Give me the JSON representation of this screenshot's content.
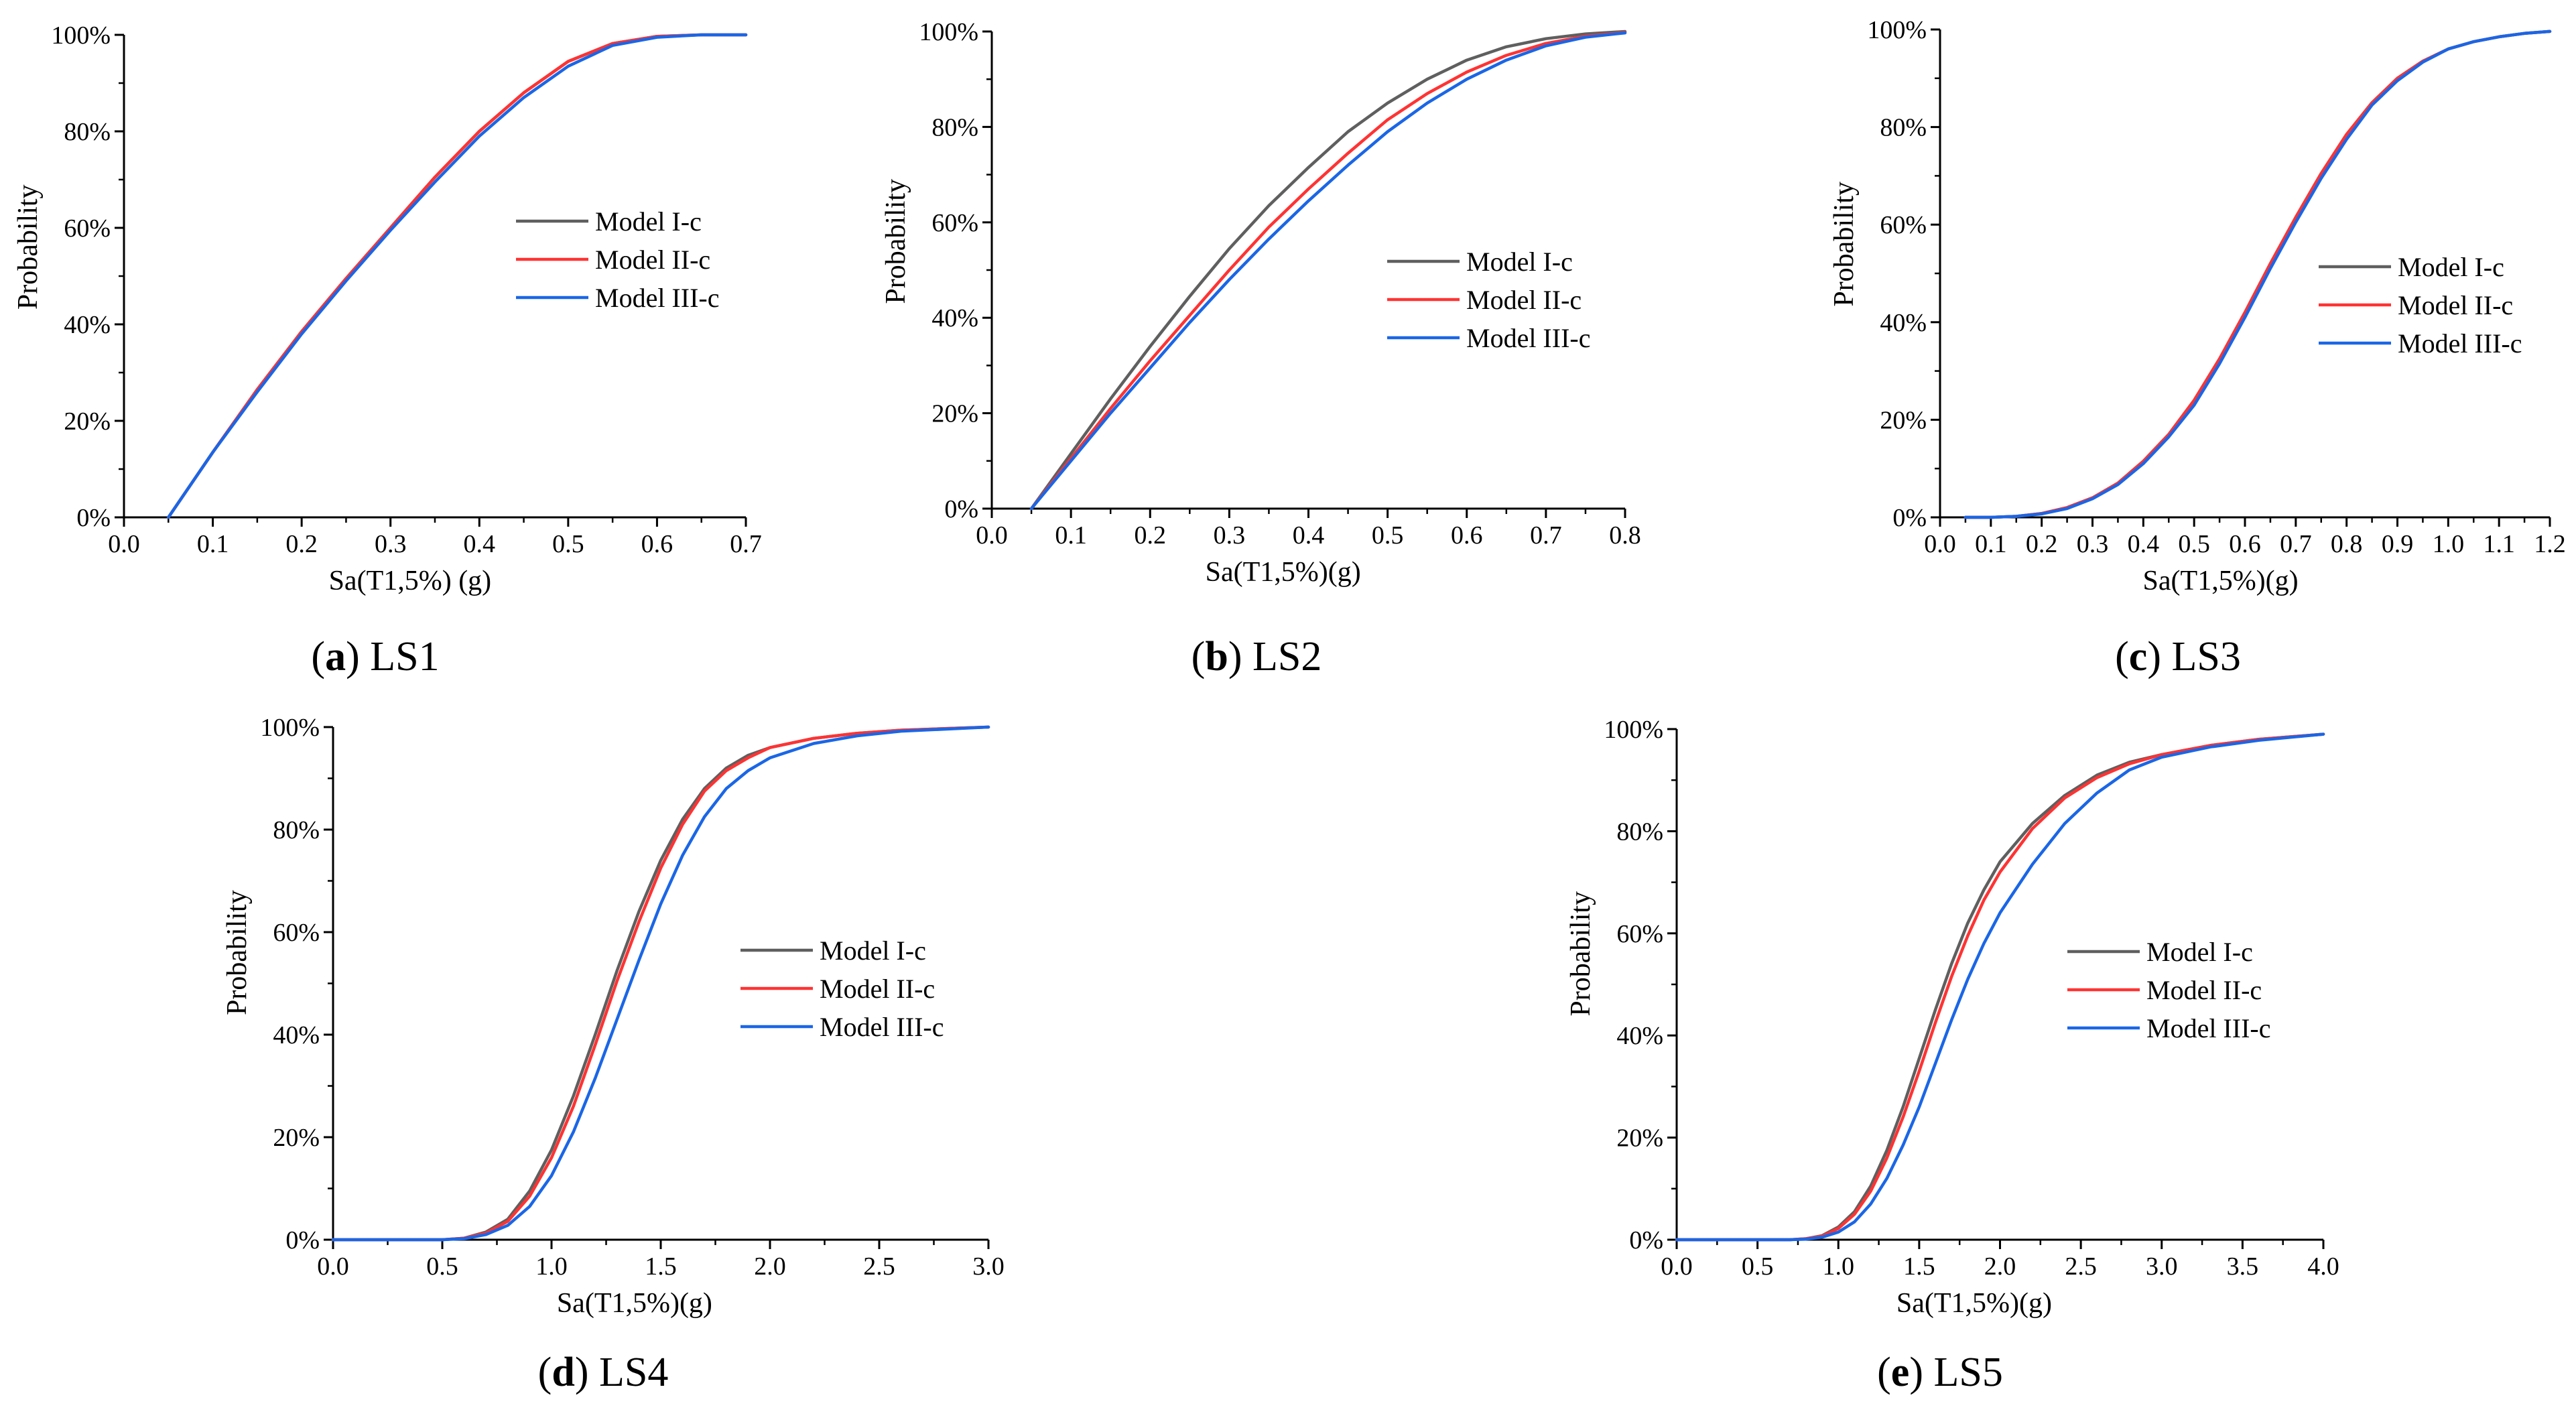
{
  "figure": {
    "series_colors": {
      "Model I-c": "#5f5f5f",
      "Model II-c": "#ff3333",
      "Model III-c": "#1a66e6"
    }
  },
  "chart_data": [
    {
      "id": "ls1",
      "type": "line",
      "caption": {
        "letter": "a",
        "text": "LS1"
      },
      "xlabel": "Sa(T1,5%) (g)",
      "ylabel": "Probability",
      "xlim": [
        0,
        0.7
      ],
      "ylim": [
        0,
        100
      ],
      "xticks": [
        "0.0",
        "0.1",
        "0.2",
        "0.3",
        "0.4",
        "0.5",
        "0.6",
        "0.7"
      ],
      "yticks": [
        "0%",
        "20%",
        "40%",
        "60%",
        "80%",
        "100%"
      ],
      "legend_position": "middle-right",
      "series": [
        {
          "name": "Model I-c",
          "x": [
            0.05,
            0.1,
            0.15,
            0.2,
            0.25,
            0.3,
            0.35,
            0.4,
            0.45,
            0.5,
            0.55,
            0.6,
            0.65,
            0.7
          ],
          "y": [
            0,
            13.5,
            26.5,
            38.5,
            49.5,
            60,
            70.5,
            80,
            88,
            94.5,
            98.2,
            99.7,
            100,
            100
          ]
        },
        {
          "name": "Model II-c",
          "x": [
            0.05,
            0.1,
            0.15,
            0.2,
            0.25,
            0.3,
            0.35,
            0.4,
            0.45,
            0.5,
            0.55,
            0.6,
            0.65,
            0.7
          ],
          "y": [
            0,
            13.5,
            26.5,
            38.5,
            49.5,
            60,
            70.5,
            80,
            88,
            94.5,
            98.2,
            99.7,
            100,
            100
          ]
        },
        {
          "name": "Model III-c",
          "x": [
            0.05,
            0.1,
            0.15,
            0.2,
            0.25,
            0.3,
            0.35,
            0.4,
            0.45,
            0.5,
            0.55,
            0.6,
            0.65,
            0.7
          ],
          "y": [
            0,
            13.5,
            26,
            38,
            49,
            59.5,
            69.5,
            79,
            87,
            93.5,
            97.8,
            99.5,
            100,
            100
          ]
        }
      ]
    },
    {
      "id": "ls2",
      "type": "line",
      "caption": {
        "letter": "b",
        "text": "LS2"
      },
      "xlabel": "Sa(T1,5%)(g)",
      "ylabel": "Probability",
      "xlim": [
        0,
        0.8
      ],
      "ylim": [
        0,
        100
      ],
      "xticks": [
        "0.0",
        "0.1",
        "0.2",
        "0.3",
        "0.4",
        "0.5",
        "0.6",
        "0.7",
        "0.8"
      ],
      "yticks": [
        "0%",
        "20%",
        "40%",
        "60%",
        "80%",
        "100%"
      ],
      "legend_position": "middle-right",
      "series": [
        {
          "name": "Model I-c",
          "x": [
            0.05,
            0.1,
            0.15,
            0.2,
            0.25,
            0.3,
            0.35,
            0.4,
            0.45,
            0.5,
            0.55,
            0.6,
            0.65,
            0.7,
            0.75,
            0.8
          ],
          "y": [
            0,
            11.5,
            23,
            34,
            44.5,
            54.5,
            63.5,
            71.5,
            79,
            85,
            90,
            94,
            96.8,
            98.5,
            99.5,
            100
          ]
        },
        {
          "name": "Model II-c",
          "x": [
            0.05,
            0.1,
            0.15,
            0.2,
            0.25,
            0.3,
            0.35,
            0.4,
            0.45,
            0.5,
            0.55,
            0.6,
            0.65,
            0.7,
            0.75,
            0.8
          ],
          "y": [
            0,
            10.5,
            21,
            31,
            40.5,
            50,
            59,
            67,
            74.5,
            81.5,
            87,
            91.5,
            95,
            97.5,
            99,
            99.8
          ]
        },
        {
          "name": "Model III-c",
          "x": [
            0.05,
            0.1,
            0.15,
            0.2,
            0.25,
            0.3,
            0.35,
            0.4,
            0.45,
            0.5,
            0.55,
            0.6,
            0.65,
            0.7,
            0.75,
            0.8
          ],
          "y": [
            0,
            10,
            20,
            29.5,
            39,
            48,
            56.5,
            64.5,
            72,
            79,
            85,
            90,
            94,
            97,
            98.8,
            99.7
          ]
        }
      ]
    },
    {
      "id": "ls3",
      "type": "line",
      "caption": {
        "letter": "c",
        "text": "LS3"
      },
      "xlabel": "Sa(T1,5%)(g)",
      "ylabel": "Probability",
      "xlim": [
        0,
        1.2
      ],
      "ylim": [
        0,
        100
      ],
      "xticks": [
        "0.0",
        "0.1",
        "0.2",
        "0.3",
        "0.4",
        "0.5",
        "0.6",
        "0.7",
        "0.8",
        "0.9",
        "1.0",
        "1.1",
        "1.2"
      ],
      "yticks": [
        "0%",
        "20%",
        "40%",
        "60%",
        "80%",
        "100%"
      ],
      "legend_position": "middle-right",
      "series": [
        {
          "name": "Model I-c",
          "x": [
            0.05,
            0.1,
            0.15,
            0.2,
            0.25,
            0.3,
            0.35,
            0.4,
            0.45,
            0.5,
            0.55,
            0.6,
            0.65,
            0.7,
            0.75,
            0.8,
            0.85,
            0.9,
            0.95,
            1.0,
            1.05,
            1.1,
            1.15,
            1.2
          ],
          "y": [
            0,
            0,
            0.2,
            0.8,
            2,
            4,
            7,
            11.5,
            17,
            24,
            32.5,
            42,
            52,
            61.5,
            70.5,
            78.5,
            85,
            90,
            93.5,
            96,
            97.5,
            98.5,
            99.2,
            99.6
          ]
        },
        {
          "name": "Model II-c",
          "x": [
            0.05,
            0.1,
            0.15,
            0.2,
            0.25,
            0.3,
            0.35,
            0.4,
            0.45,
            0.5,
            0.55,
            0.6,
            0.65,
            0.7,
            0.75,
            0.8,
            0.85,
            0.9,
            0.95,
            1.0,
            1.05,
            1.1,
            1.15,
            1.2
          ],
          "y": [
            0,
            0,
            0.2,
            0.8,
            2,
            4,
            7,
            11.5,
            17,
            24,
            32.5,
            42,
            52,
            61.5,
            70.5,
            78.5,
            85,
            90,
            93.5,
            96,
            97.5,
            98.5,
            99.2,
            99.6
          ]
        },
        {
          "name": "Model III-c",
          "x": [
            0.05,
            0.1,
            0.15,
            0.2,
            0.25,
            0.3,
            0.35,
            0.4,
            0.45,
            0.5,
            0.55,
            0.6,
            0.65,
            0.7,
            0.75,
            0.8,
            0.85,
            0.9,
            0.95,
            1.0,
            1.05,
            1.1,
            1.15,
            1.2
          ],
          "y": [
            0,
            0,
            0.2,
            0.7,
            1.8,
            3.8,
            6.7,
            11,
            16.5,
            23,
            31.5,
            41,
            51,
            60.5,
            69.5,
            77.5,
            84.5,
            89.5,
            93.3,
            96,
            97.5,
            98.5,
            99.2,
            99.6
          ]
        }
      ]
    },
    {
      "id": "ls4",
      "type": "line",
      "caption": {
        "letter": "d",
        "text": "LS4"
      },
      "xlabel": "Sa(T1,5%)(g)",
      "ylabel": "Probability",
      "xlim": [
        0,
        3.0
      ],
      "ylim": [
        0,
        100
      ],
      "xticks": [
        "0.0",
        "0.5",
        "1.0",
        "1.5",
        "2.0",
        "2.5",
        "3.0"
      ],
      "yticks": [
        "0%",
        "20%",
        "40%",
        "60%",
        "80%",
        "100%"
      ],
      "legend_position": "middle-right",
      "series": [
        {
          "name": "Model I-c",
          "x": [
            0,
            0.5,
            0.6,
            0.7,
            0.8,
            0.9,
            1.0,
            1.1,
            1.2,
            1.3,
            1.4,
            1.5,
            1.6,
            1.7,
            1.8,
            1.9,
            2.0,
            2.2,
            2.4,
            2.6,
            2.8,
            3.0
          ],
          "y": [
            0,
            0,
            0.3,
            1.5,
            4,
            9.5,
            17.5,
            28,
            40,
            52.5,
            64,
            74,
            82,
            88,
            92,
            94.5,
            96,
            97.8,
            98.8,
            99.4,
            99.7,
            100
          ]
        },
        {
          "name": "Model II-c",
          "x": [
            0,
            0.5,
            0.6,
            0.7,
            0.8,
            0.9,
            1.0,
            1.1,
            1.2,
            1.3,
            1.4,
            1.5,
            1.6,
            1.7,
            1.8,
            1.9,
            2.0,
            2.2,
            2.4,
            2.6,
            2.8,
            3.0
          ],
          "y": [
            0,
            0,
            0.3,
            1.3,
            3.6,
            8.5,
            16,
            26,
            38,
            50.5,
            62,
            72.5,
            81,
            87.5,
            91.5,
            94,
            96,
            97.8,
            98.8,
            99.4,
            99.7,
            100
          ]
        },
        {
          "name": "Model III-c",
          "x": [
            0,
            0.5,
            0.6,
            0.7,
            0.8,
            0.9,
            1.0,
            1.1,
            1.2,
            1.3,
            1.4,
            1.5,
            1.6,
            1.7,
            1.8,
            1.9,
            2.0,
            2.2,
            2.4,
            2.6,
            2.8,
            3.0
          ],
          "y": [
            0,
            0,
            0.2,
            1,
            2.8,
            6.5,
            12.5,
            21,
            31.5,
            43,
            54.5,
            65.5,
            75,
            82.5,
            88,
            91.5,
            94,
            96.8,
            98.3,
            99.2,
            99.6,
            100
          ]
        }
      ]
    },
    {
      "id": "ls5",
      "type": "line",
      "caption": {
        "letter": "e",
        "text": "LS5"
      },
      "xlabel": "Sa(T1,5%)(g)",
      "ylabel": "Probability",
      "xlim": [
        0,
        4.0
      ],
      "ylim": [
        0,
        100
      ],
      "xticks": [
        "0.0",
        "0.5",
        "1.0",
        "1.5",
        "2.0",
        "2.5",
        "3.0",
        "3.5",
        "4.0"
      ],
      "yticks": [
        "0%",
        "20%",
        "40%",
        "60%",
        "80%",
        "100%"
      ],
      "legend_position": "middle-right",
      "series": [
        {
          "name": "Model I-c",
          "x": [
            0,
            0.7,
            0.8,
            0.9,
            1.0,
            1.1,
            1.2,
            1.3,
            1.4,
            1.5,
            1.6,
            1.7,
            1.8,
            1.9,
            2.0,
            2.2,
            2.4,
            2.6,
            2.8,
            3.0,
            3.3,
            3.6,
            4.0
          ],
          "y": [
            0,
            0,
            0.2,
            0.8,
            2.5,
            5.5,
            10.5,
            17.5,
            26,
            35.5,
            45,
            54,
            62,
            68.5,
            74,
            81.5,
            87,
            91,
            93.5,
            95,
            96.8,
            98,
            99
          ]
        },
        {
          "name": "Model II-c",
          "x": [
            0,
            0.7,
            0.8,
            0.9,
            1.0,
            1.1,
            1.2,
            1.3,
            1.4,
            1.5,
            1.6,
            1.7,
            1.8,
            1.9,
            2.0,
            2.2,
            2.4,
            2.6,
            2.8,
            3.0,
            3.3,
            3.6,
            4.0
          ],
          "y": [
            0,
            0,
            0.2,
            0.7,
            2.2,
            5,
            9.5,
            16,
            24,
            33,
            42.5,
            51.5,
            59.5,
            66.5,
            72,
            80.5,
            86.5,
            90.5,
            93.2,
            95,
            96.8,
            98,
            99
          ]
        },
        {
          "name": "Model III-c",
          "x": [
            0,
            0.7,
            0.8,
            0.9,
            1.0,
            1.1,
            1.2,
            1.3,
            1.4,
            1.5,
            1.6,
            1.7,
            1.8,
            1.9,
            2.0,
            2.2,
            2.4,
            2.6,
            2.8,
            3.0,
            3.3,
            3.6,
            4.0
          ],
          "y": [
            0,
            0,
            0.1,
            0.5,
            1.5,
            3.5,
            7,
            12,
            18.5,
            26,
            34.5,
            43,
            51,
            58,
            64,
            73.5,
            81.5,
            87.5,
            92,
            94.5,
            96.5,
            97.8,
            99
          ]
        }
      ]
    }
  ]
}
